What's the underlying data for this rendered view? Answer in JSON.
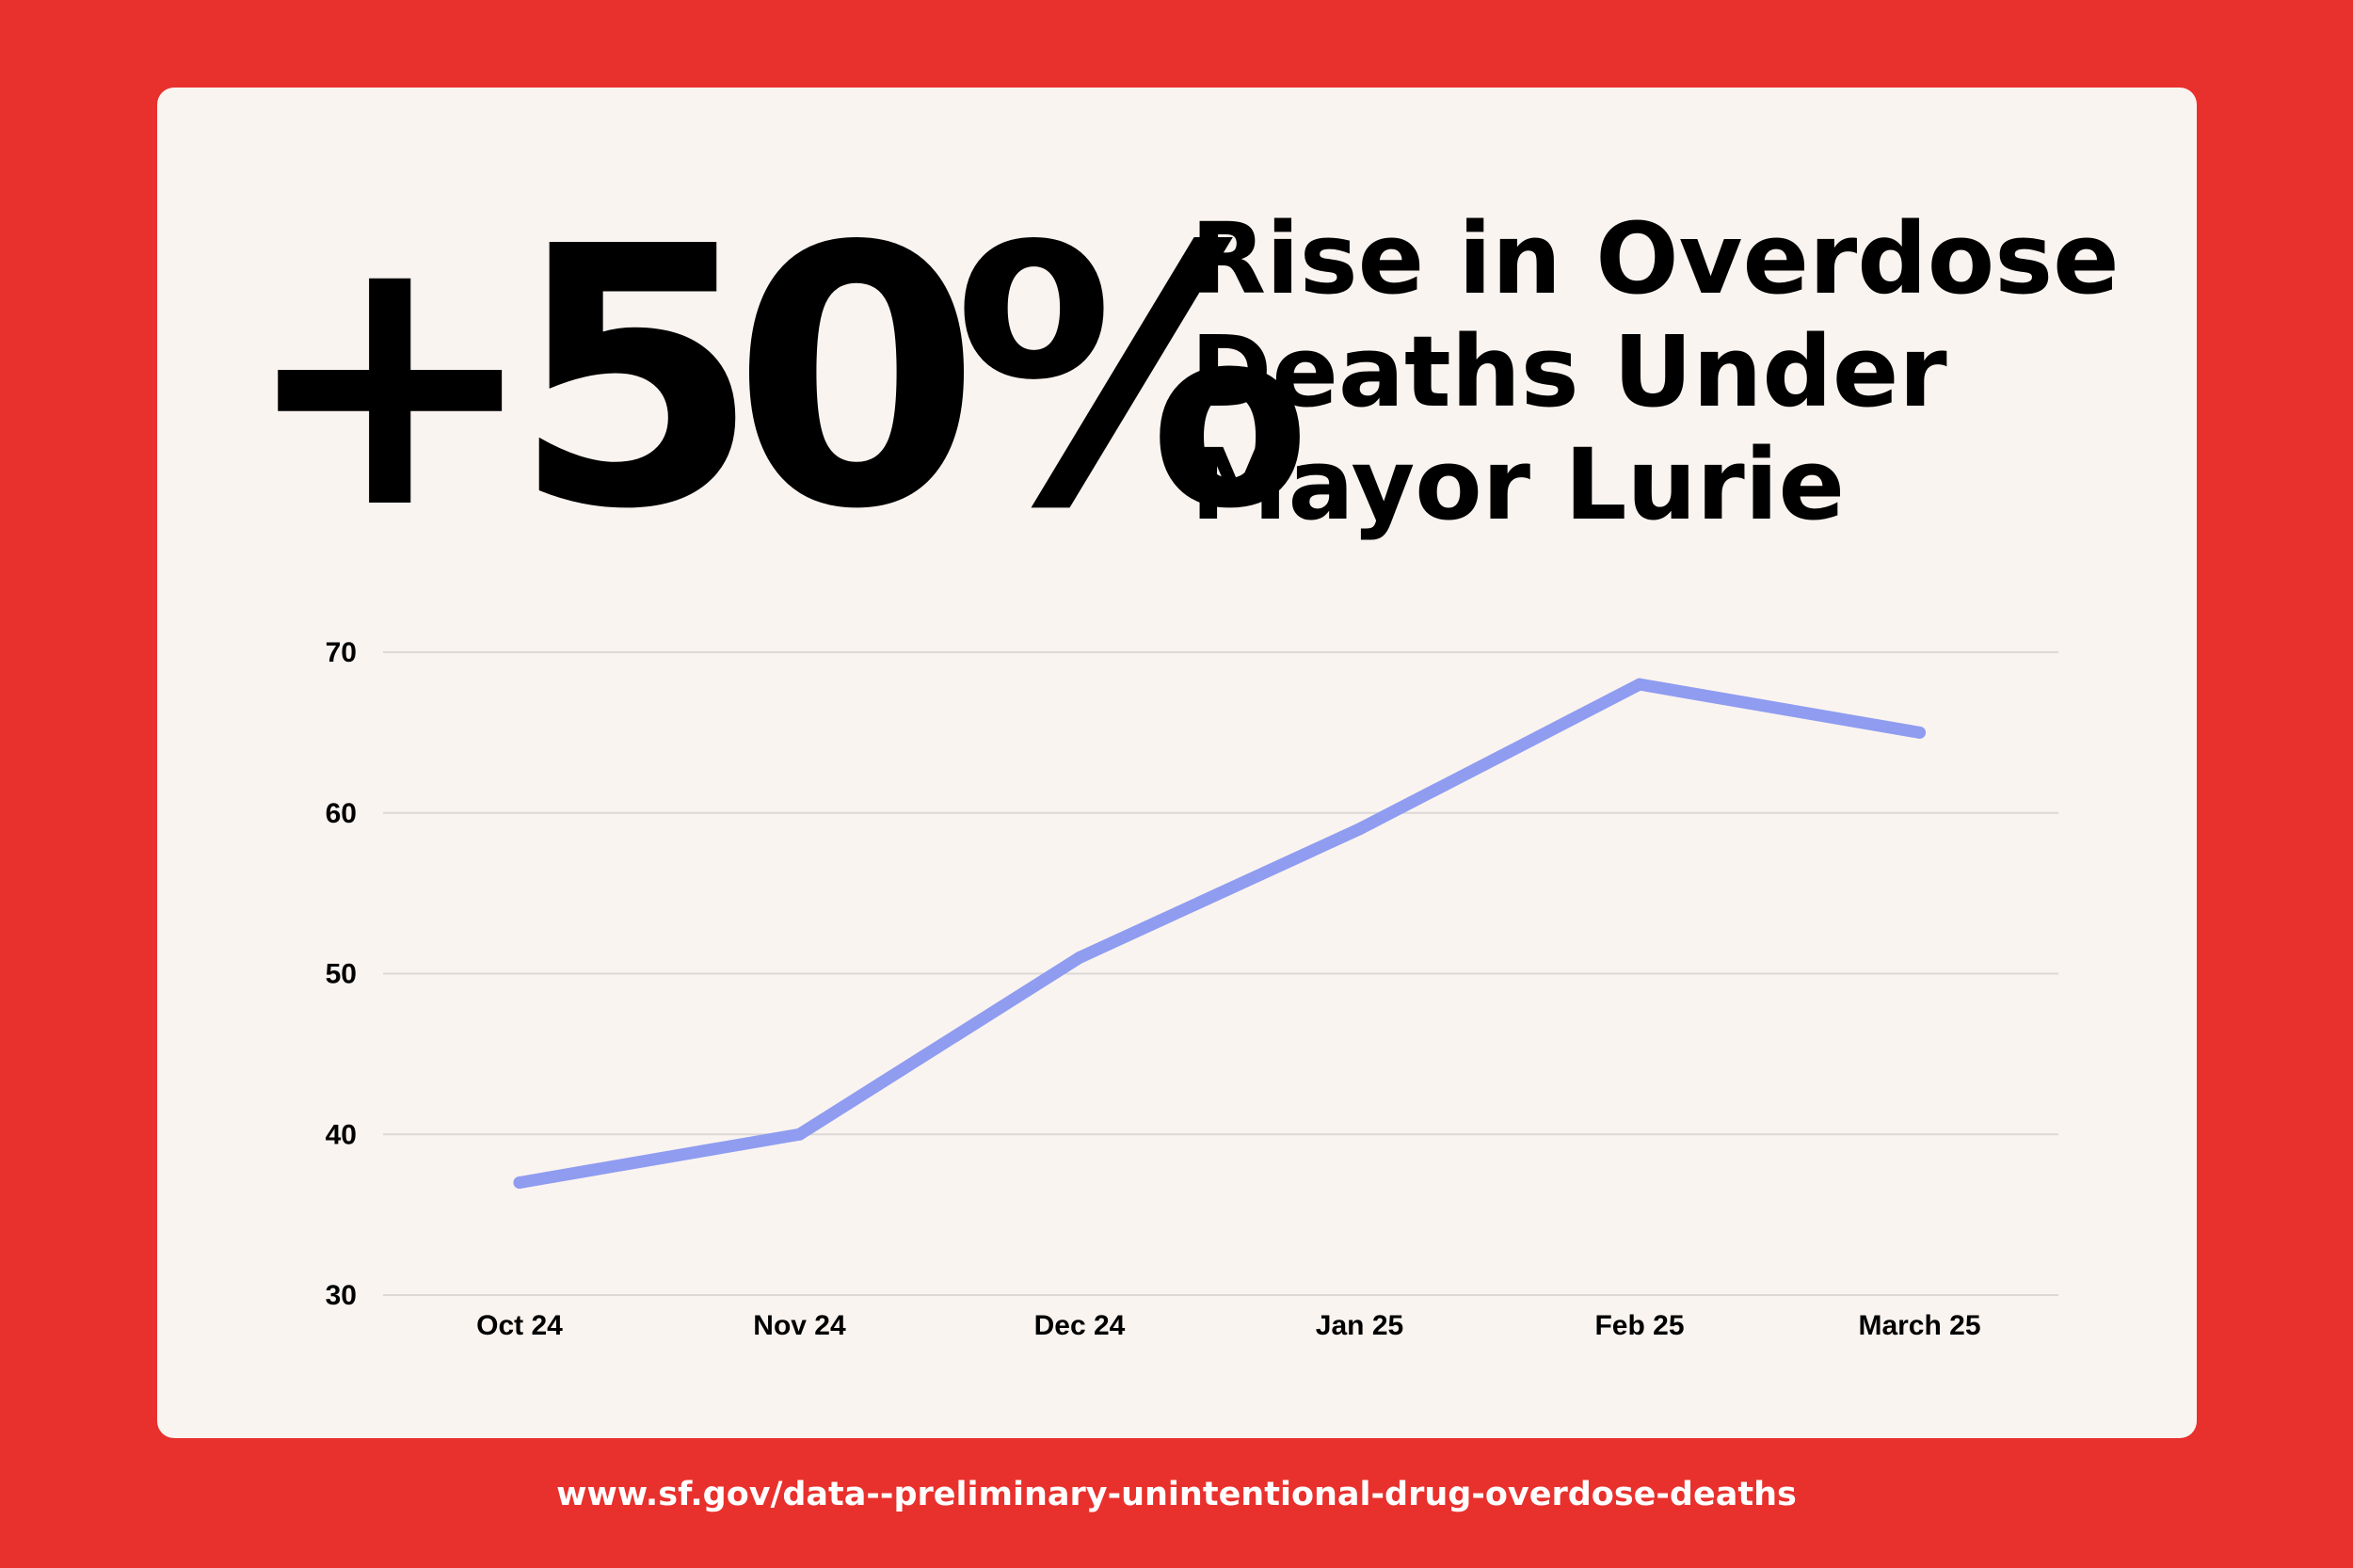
{
  "headline": {
    "stat": "+50%",
    "lines": [
      "Rise in Overdose",
      "Deaths Under",
      "Mayor Lurie"
    ]
  },
  "source": "www.sf.gov/data--preliminary-unintentional-drug-overdose-deaths",
  "colors": {
    "background": "#e8312d",
    "card": "#faf4f0",
    "line": "#8f9cf0",
    "grid": "#dcd8d5"
  },
  "chart_data": {
    "type": "line",
    "categories": [
      "Oct 24",
      "Nov 24",
      "Dec 24",
      "Jan 25",
      "Feb 25",
      "March 25"
    ],
    "series": [
      {
        "values": [
          37,
          40,
          51,
          59,
          68,
          65
        ]
      }
    ],
    "y_ticks": [
      "30",
      "40",
      "50",
      "60",
      "70"
    ],
    "ylim": [
      30,
      70
    ],
    "grid": true,
    "legend": false,
    "xlabel": "",
    "ylabel": ""
  }
}
